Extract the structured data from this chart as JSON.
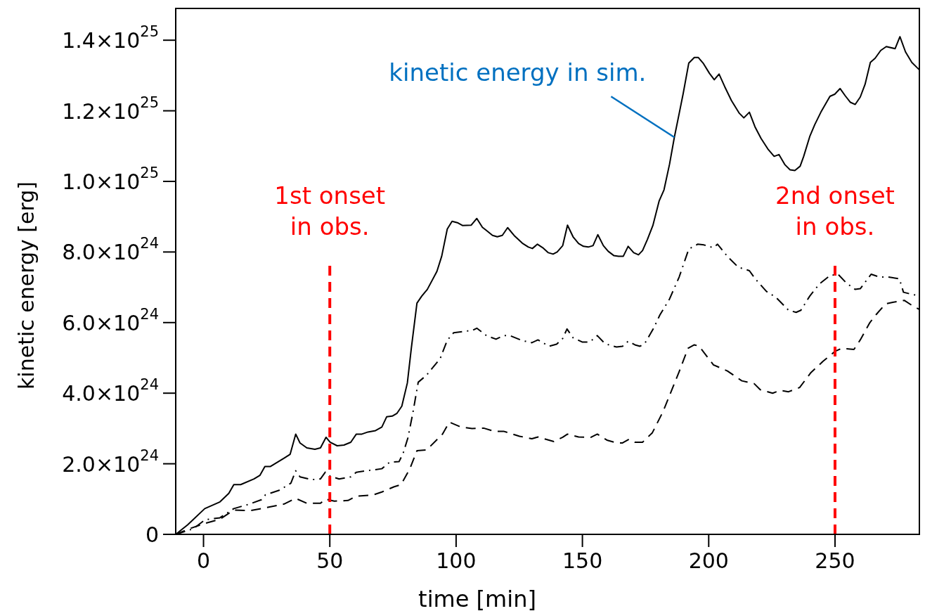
{
  "chart_data": {
    "type": "line",
    "xlabel": "time [min]",
    "ylabel": "kinetic energy [erg]",
    "xlim": [
      -11,
      283.4
    ],
    "ylim": [
      0,
      1.49e+25
    ],
    "xticks": [
      0,
      50,
      100,
      150,
      200,
      250
    ],
    "yticks": [
      0,
      {
        "value": 2e+24,
        "label": "2.0×10$^{24}$"
      },
      {
        "value": 4e+24,
        "label": "4.0×10$^{24}$"
      },
      {
        "value": 6e+24,
        "label": "6.0×10$^{24}$"
      },
      {
        "value": 8e+24,
        "label": "8.0×10$^{24}$"
      },
      {
        "value": 1e+25,
        "label": "1.0×10$^{25}$"
      },
      {
        "value": 1.2e+25,
        "label": "1.2×10$^{25}$"
      },
      {
        "value": 1.4e+25,
        "label": "1.4×10$^{25}$"
      }
    ],
    "grid": false,
    "marker": "none",
    "series": [
      {
        "color": "#000000",
        "line_style": "solid",
        "x": [
          -11,
          -6.3,
          0.5,
          6.5,
          10,
          12,
          14.7,
          20,
          22.3,
          24.3,
          26.4,
          31.9,
          34.3,
          36.5,
          38.2,
          40.9,
          44.1,
          46.3,
          48.5,
          50.1,
          52.9,
          55.6,
          58.3,
          60.5,
          62.7,
          65.1,
          68.1,
          70.6,
          72.5,
          74.7,
          76.6,
          78.5,
          80.7,
          82.3,
          84.5,
          86.4,
          88.6,
          92.4,
          94.3,
          96.5,
          98.4,
          100.5,
          102.5,
          106,
          108.2,
          110.4,
          112,
          114.4,
          116.3,
          118.3,
          120.4,
          123.2,
          126.2,
          128.6,
          130.2,
          132.2,
          134.3,
          136.5,
          138.4,
          140,
          142.2,
          144.1,
          146.3,
          148.5,
          150.4,
          152.3,
          154.2,
          156.1,
          158.3,
          160.2,
          162.4,
          164.3,
          166.2,
          168.1,
          170.3,
          172.2,
          173.8,
          175.7,
          177.9,
          180.4,
          182.3,
          184.5,
          186.4,
          188.3,
          189.9,
          192.1,
          194.3,
          195.9,
          197.8,
          200.3,
          202.2,
          204.1,
          206.3,
          209,
          212,
          213.9,
          216.1,
          218.3,
          220.7,
          223.4,
          225.9,
          227.8,
          230.2,
          232.2,
          234.1,
          236.2,
          237.6,
          240,
          242,
          244.4,
          248,
          249.9,
          252,
          254,
          256.1,
          258,
          260,
          261.9,
          264,
          265.9,
          268.1,
          270.3,
          273.8,
          275.7,
          277.9,
          280.4,
          283.4
        ],
        "values": [
          0,
          2.7e+23,
          7.3e+23,
          9.2e+23,
          1.16e+24,
          1.41e+24,
          1.41e+24,
          1.57e+24,
          1.67e+24,
          1.92e+24,
          1.92e+24,
          2.16e+24,
          2.27e+24,
          2.84e+24,
          2.59e+24,
          2.45e+24,
          2.41e+24,
          2.45e+24,
          2.75e+24,
          2.61e+24,
          2.51e+24,
          2.53e+24,
          2.61e+24,
          2.84e+24,
          2.84e+24,
          2.9e+24,
          2.94e+24,
          3.04e+24,
          3.33e+24,
          3.35e+24,
          3.43e+24,
          3.63e+24,
          4.29e+24,
          5.29e+24,
          6.55e+24,
          6.75e+24,
          6.94e+24,
          7.45e+24,
          7.88e+24,
          8.65e+24,
          8.87e+24,
          8.83e+24,
          8.75e+24,
          8.76e+24,
          8.95e+24,
          8.7e+24,
          8.61e+24,
          8.47e+24,
          8.43e+24,
          8.47e+24,
          8.69e+24,
          8.45e+24,
          8.25e+24,
          8.14e+24,
          8.1e+24,
          8.22e+24,
          8.12e+24,
          7.98e+24,
          7.94e+24,
          8e+24,
          8.18e+24,
          8.76e+24,
          8.43e+24,
          8.24e+24,
          8.16e+24,
          8.14e+24,
          8.18e+24,
          8.49e+24,
          8.18e+24,
          8.02e+24,
          7.9e+24,
          7.88e+24,
          7.88e+24,
          8.16e+24,
          7.98e+24,
          7.92e+24,
          8.04e+24,
          8.35e+24,
          8.75e+24,
          9.45e+24,
          9.76e+24,
          1.049e+25,
          1.125e+25,
          1.192e+25,
          1.249e+25,
          1.335e+25,
          1.351e+25,
          1.351e+25,
          1.335e+25,
          1.306e+25,
          1.288e+25,
          1.304e+25,
          1.269e+25,
          1.229e+25,
          1.194e+25,
          1.18e+25,
          1.196e+25,
          1.155e+25,
          1.122e+25,
          1.092e+25,
          1.071e+25,
          1.076e+25,
          1.047e+25,
          1.033e+25,
          1.031e+25,
          1.043e+25,
          1.071e+25,
          1.127e+25,
          1.161e+25,
          1.196e+25,
          1.241e+25,
          1.247e+25,
          1.263e+25,
          1.243e+25,
          1.224e+25,
          1.218e+25,
          1.239e+25,
          1.275e+25,
          1.337e+25,
          1.349e+25,
          1.371e+25,
          1.382e+25,
          1.376e+25,
          1.41e+25,
          1.367e+25,
          1.337e+25,
          1.316e+25
        ]
      },
      {
        "color": "#000000",
        "line_style": "dashdot",
        "x": [
          -11,
          -4,
          0.5,
          6.5,
          12,
          18.3,
          22.9,
          24.5,
          30,
          34.6,
          36.5,
          38.2,
          42.8,
          46.3,
          48.2,
          50.1,
          53.7,
          58.3,
          60.5,
          66.5,
          70.6,
          73.6,
          77.4,
          79,
          80.9,
          82.8,
          85,
          88.3,
          93.7,
          96.5,
          99,
          106.5,
          108.2,
          112,
          115.8,
          118.8,
          121.3,
          126.2,
          130,
          132.4,
          136.8,
          139.8,
          142.2,
          143.9,
          146.3,
          149.9,
          152.9,
          155.9,
          158.6,
          161,
          163.5,
          165.9,
          168.1,
          170.8,
          172.8,
          174.7,
          178.2,
          180.7,
          184.5,
          188.3,
          192.1,
          195.6,
          198.1,
          201.9,
          203.5,
          207.6,
          211.7,
          216.1,
          218.3,
          222.9,
          226.7,
          231.6,
          234.6,
          236.5,
          240,
          243.9,
          248,
          251.2,
          254.5,
          258,
          260,
          264.3,
          267.6,
          271.1,
          275.5,
          277.1,
          280.4,
          283.4
        ],
        "values": [
          0,
          1.6e+23,
          4.1e+23,
          4.7e+23,
          7.3e+23,
          8.6e+23,
          9.8e+23,
          1.12e+24,
          1.25e+24,
          1.45e+24,
          1.8e+24,
          1.63e+24,
          1.55e+24,
          1.57e+24,
          1.76e+24,
          1.65e+24,
          1.57e+24,
          1.63e+24,
          1.76e+24,
          1.82e+24,
          1.86e+24,
          2.04e+24,
          2.06e+24,
          2.29e+24,
          2.73e+24,
          3.41e+24,
          4.31e+24,
          4.51e+24,
          4.98e+24,
          5.5e+24,
          5.71e+24,
          5.78e+24,
          5.84e+24,
          5.63e+24,
          5.53e+24,
          5.63e+24,
          5.63e+24,
          5.49e+24,
          5.43e+24,
          5.51e+24,
          5.33e+24,
          5.39e+24,
          5.55e+24,
          5.82e+24,
          5.57e+24,
          5.45e+24,
          5.45e+24,
          5.63e+24,
          5.43e+24,
          5.35e+24,
          5.31e+24,
          5.33e+24,
          5.47e+24,
          5.37e+24,
          5.33e+24,
          5.41e+24,
          5.84e+24,
          6.22e+24,
          6.67e+24,
          7.29e+24,
          8.08e+24,
          8.22e+24,
          8.2e+24,
          8.12e+24,
          8.22e+24,
          7.86e+24,
          7.57e+24,
          7.47e+24,
          7.25e+24,
          6.88e+24,
          6.71e+24,
          6.35e+24,
          6.29e+24,
          6.35e+24,
          6.75e+24,
          7.1e+24,
          7.33e+24,
          7.37e+24,
          7.12e+24,
          6.94e+24,
          6.96e+24,
          7.37e+24,
          7.29e+24,
          7.29e+24,
          7.24e+24,
          6.86e+24,
          6.8e+24,
          6.76e+24
        ]
      },
      {
        "color": "#000000",
        "line_style": "dashed",
        "x": [
          -11,
          -6.3,
          0.5,
          6.5,
          12,
          18.3,
          22.9,
          31.9,
          36.5,
          40.9,
          46.3,
          48.2,
          51.8,
          57.2,
          60.5,
          67.3,
          70.6,
          75.5,
          78.2,
          81.7,
          84.5,
          88.3,
          94.6,
          97.3,
          101.9,
          106.3,
          110.9,
          115,
          118.8,
          125.1,
          130,
          132.4,
          138.7,
          142.2,
          144.1,
          148.5,
          153.4,
          155.9,
          159.7,
          163.5,
          165.9,
          168.4,
          170.8,
          173.8,
          177.7,
          182,
          188.3,
          191.8,
          194.3,
          196.2,
          201.9,
          207.4,
          213.1,
          218,
          220.4,
          225.3,
          228.3,
          231.6,
          236,
          240.3,
          245.2,
          249.9,
          252.6,
          257.5,
          260,
          263.8,
          266.2,
          270,
          272.5,
          277.4,
          280.4,
          283.4
        ],
        "values": [
          0,
          1.4e+23,
          3.1e+23,
          4.3e+23,
          6.9e+23,
          6.7e+23,
          7.3e+23,
          8.6e+23,
          1.02e+24,
          8.8e+23,
          8.8e+23,
          1e+24,
          9.4e+23,
          9.6e+23,
          1.08e+24,
          1.12e+24,
          1.2e+24,
          1.35e+24,
          1.41e+24,
          1.86e+24,
          2.37e+24,
          2.39e+24,
          2.84e+24,
          3.18e+24,
          3.04e+24,
          3e+24,
          3.01e+24,
          2.92e+24,
          2.92e+24,
          2.78e+24,
          2.71e+24,
          2.76e+24,
          2.63e+24,
          2.75e+24,
          2.84e+24,
          2.76e+24,
          2.75e+24,
          2.84e+24,
          2.67e+24,
          2.59e+24,
          2.59e+24,
          2.69e+24,
          2.61e+24,
          2.61e+24,
          2.88e+24,
          3.49e+24,
          4.61e+24,
          5.27e+24,
          5.37e+24,
          5.33e+24,
          4.8e+24,
          4.63e+24,
          4.35e+24,
          4.27e+24,
          4.1e+24,
          4e+24,
          4.08e+24,
          4.04e+24,
          4.16e+24,
          4.57e+24,
          4.9e+24,
          5.18e+24,
          5.27e+24,
          5.24e+24,
          5.51e+24,
          6e+24,
          6.22e+24,
          6.53e+24,
          6.57e+24,
          6.63e+24,
          6.49e+24,
          6.37e+24
        ]
      }
    ],
    "ref_lines": [
      {
        "axis": "x",
        "value": 50,
        "label": "1st onset\nin obs.",
        "color": "#ff0000",
        "line_style": "dashed"
      },
      {
        "axis": "x",
        "value": 250,
        "label": "2nd onset\nin obs.",
        "color": "#ff0000",
        "line_style": "dashed"
      }
    ],
    "annotations": [
      {
        "text": "kinetic energy in sim.",
        "x": 186.4,
        "y": 1.125e+25
      }
    ]
  }
}
